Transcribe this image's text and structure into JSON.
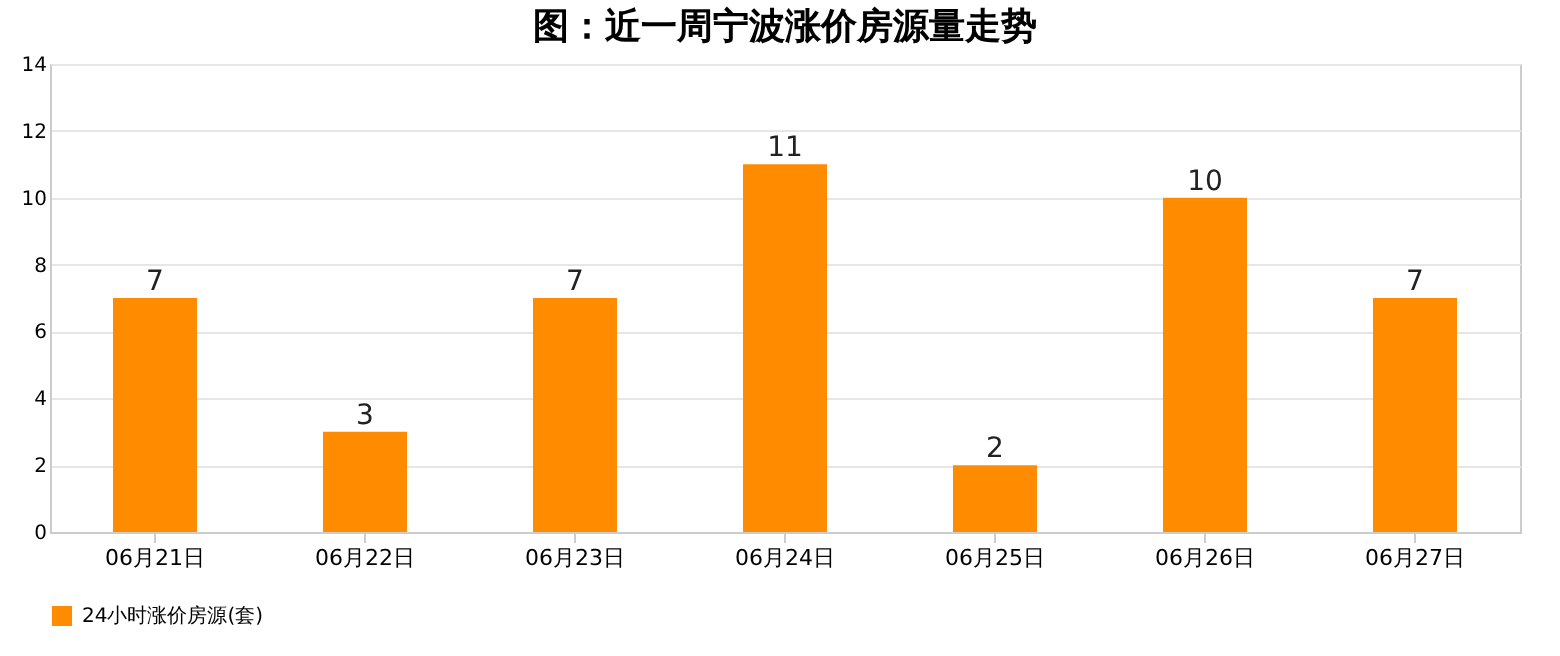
{
  "chart_data": {
    "type": "bar",
    "title": "图：近一周宁波涨价房源量走势",
    "categories": [
      "06月21日",
      "06月22日",
      "06月23日",
      "06月24日",
      "06月25日",
      "06月26日",
      "06月27日"
    ],
    "series": [
      {
        "name": "24小时涨价房源(套)",
        "color": "#ff8c00",
        "values": [
          7,
          3,
          7,
          11,
          2,
          10,
          7
        ]
      }
    ],
    "ylim": [
      0,
      14
    ],
    "yticks": [
      0,
      2,
      4,
      6,
      8,
      10,
      12,
      14
    ],
    "grid": "y",
    "legend": "bottom",
    "data_labels": true
  }
}
